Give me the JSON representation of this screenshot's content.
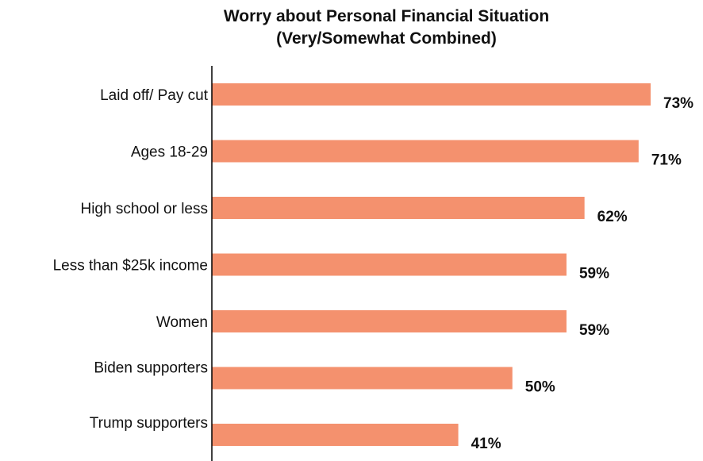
{
  "chart_data": {
    "type": "bar",
    "orientation": "horizontal",
    "title": [
      "Worry about Personal Financial Situation",
      "(Very/Somewhat Combined)"
    ],
    "categories": [
      "Laid off/ Pay cut",
      "Ages 18-29",
      "High school or less",
      "Less than $25k income",
      "Women",
      "Biden supporters",
      "Trump supporters"
    ],
    "values": [
      73,
      71,
      62,
      59,
      59,
      50,
      41
    ],
    "value_labels": [
      "73%",
      "71%",
      "62%",
      "59%",
      "59%",
      "50%",
      "41%"
    ],
    "unit": "%",
    "xlim": [
      0,
      73
    ],
    "grid": false,
    "legend": "none",
    "bar_color": "#f4916e",
    "axis_color": "#000000"
  }
}
